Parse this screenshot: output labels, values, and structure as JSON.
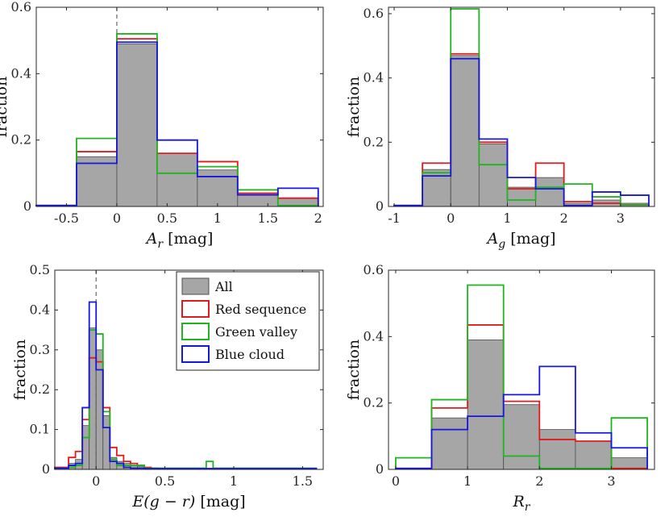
{
  "figure": {
    "layout": "2x2 grid of histograms"
  },
  "colors": {
    "all_fill": "#a6a6a6",
    "all_edge": "#4d4d4d",
    "red": "#e31a1c",
    "green": "#1fb51f",
    "blue": "#1616e0",
    "zero_line": "#666666"
  },
  "legend": {
    "entries": [
      {
        "key": "all",
        "label": "All",
        "style": "filled"
      },
      {
        "key": "red",
        "label": "Red sequence",
        "style": "outline"
      },
      {
        "key": "green",
        "label": "Green valley",
        "style": "outline"
      },
      {
        "key": "blue",
        "label": "Blue cloud",
        "style": "outline"
      }
    ]
  },
  "chart_data": [
    {
      "type": "histogram",
      "panel": "top-left",
      "xlabel": {
        "main": "A",
        "sub": "r",
        "unit": " [mag]"
      },
      "ylabel": "fraction",
      "xlim": [
        -0.8,
        2.05
      ],
      "ylim": [
        0,
        0.6
      ],
      "xticks": [
        -0.5,
        0,
        0.5,
        1,
        1.5,
        2
      ],
      "xticklabels": [
        "-0.5",
        "0",
        "0.5",
        "1",
        "1.5",
        "2"
      ],
      "yticks": [
        0,
        0.2,
        0.4,
        0.6
      ],
      "yticklabels": [
        "0",
        "0.2",
        "0.4",
        "0.6"
      ],
      "zero_line_x": 0,
      "bin_edges": [
        -0.8,
        -0.4,
        0,
        0.4,
        0.8,
        1.2,
        1.6,
        2.0
      ],
      "series": [
        {
          "name": "All",
          "key": "all",
          "values": [
            0.003,
            0.15,
            0.49,
            0.16,
            0.11,
            0.04,
            0.025
          ]
        },
        {
          "name": "Red sequence",
          "key": "red",
          "values": [
            0.003,
            0.165,
            0.505,
            0.16,
            0.135,
            0.04,
            0.025
          ]
        },
        {
          "name": "Green valley",
          "key": "green",
          "values": [
            0.003,
            0.205,
            0.52,
            0.1,
            0.12,
            0.05,
            0.003
          ]
        },
        {
          "name": "Blue cloud",
          "key": "blue",
          "values": [
            0.003,
            0.13,
            0.495,
            0.2,
            0.09,
            0.035,
            0.055
          ]
        }
      ]
    },
    {
      "type": "histogram",
      "panel": "top-right",
      "xlabel": {
        "main": "A",
        "sub": "g",
        "unit": " [mag]"
      },
      "ylabel": "fraction",
      "xlim": [
        -1.1,
        3.6
      ],
      "ylim": [
        0,
        0.62
      ],
      "xticks": [
        -1,
        0,
        1,
        2,
        3
      ],
      "xticklabels": [
        "-1",
        "0",
        "1",
        "2",
        "3"
      ],
      "yticks": [
        0,
        0.2,
        0.4,
        0.6
      ],
      "yticklabels": [
        "0",
        "0.2",
        "0.4",
        "0.6"
      ],
      "zero_line_x": 0,
      "bin_edges": [
        -1.0,
        -0.5,
        0,
        0.5,
        1.0,
        1.5,
        2.0,
        2.5,
        3.0,
        3.5
      ],
      "series": [
        {
          "name": "All",
          "key": "all",
          "values": [
            0.003,
            0.115,
            0.47,
            0.195,
            0.06,
            0.09,
            0.01,
            0.02,
            0.01
          ]
        },
        {
          "name": "Red sequence",
          "key": "red",
          "values": [
            0.003,
            0.135,
            0.475,
            0.2,
            0.055,
            0.135,
            0.015,
            0.01,
            0.005
          ]
        },
        {
          "name": "Green valley",
          "key": "green",
          "values": [
            0.003,
            0.105,
            0.615,
            0.13,
            0.02,
            0.06,
            0.07,
            0.03,
            0.005
          ]
        },
        {
          "name": "Blue cloud",
          "key": "blue",
          "values": [
            0.003,
            0.095,
            0.46,
            0.21,
            0.09,
            0.055,
            0.003,
            0.045,
            0.035
          ]
        }
      ]
    },
    {
      "type": "histogram",
      "panel": "bottom-left",
      "xlabel": {
        "main": "E(g − r)",
        "sub": "",
        "unit": " [mag]"
      },
      "ylabel": "fraction",
      "xlim": [
        -0.3,
        1.65
      ],
      "ylim": [
        0,
        0.5
      ],
      "xticks": [
        0,
        0.5,
        1,
        1.5
      ],
      "xticklabels": [
        "0",
        "0.5",
        "1",
        "1.5"
      ],
      "yticks": [
        0,
        0.1,
        0.2,
        0.3,
        0.4,
        0.5
      ],
      "yticklabels": [
        "0",
        "0.1",
        "0.2",
        "0.3",
        "0.4",
        "0.5"
      ],
      "zero_line_x": 0,
      "bin_edges": [
        -0.3,
        -0.2,
        -0.1,
        0,
        0.1,
        0.2,
        0.3,
        0.4,
        0.5,
        0.6,
        0.7,
        0.8,
        0.9,
        1.0,
        1.1,
        1.2,
        1.3,
        1.4,
        1.5,
        1.6
      ],
      "bin_width": 0.05,
      "bins_left": [
        -0.3,
        -0.25,
        -0.2,
        -0.15,
        -0.1,
        -0.05,
        0,
        0.05,
        0.1,
        0.15,
        0.2,
        0.25,
        0.3,
        0.35,
        0.4,
        0.45,
        0.5,
        0.55,
        0.6,
        0.65,
        0.7,
        0.75,
        0.8,
        0.85,
        0.9,
        0.95,
        1.0,
        1.05,
        1.1,
        1.15,
        1.2,
        1.25,
        1.3,
        1.35,
        1.4,
        1.45,
        1.5,
        1.55
      ],
      "series": [
        {
          "name": "All",
          "key": "all",
          "values": [
            0.003,
            0.003,
            0.015,
            0.025,
            0.11,
            0.355,
            0.3,
            0.135,
            0.03,
            0.02,
            0.015,
            0.01,
            0.008,
            0.005,
            0.003,
            0.003,
            0.002,
            0.002,
            0.002,
            0.001,
            0.001,
            0.001,
            0.001,
            0.001,
            0.001,
            0.001,
            0.001,
            0.001,
            0.001,
            0.001,
            0.001,
            0.001,
            0.001,
            0.001,
            0.001,
            0.001,
            0.001,
            0.001
          ]
        },
        {
          "name": "Red sequence",
          "key": "red",
          "values": [
            0.005,
            0.005,
            0.03,
            0.045,
            0.125,
            0.28,
            0.27,
            0.155,
            0.055,
            0.035,
            0.02,
            0.015,
            0.01,
            0.005,
            0.003,
            0.002,
            0.002,
            0.002,
            0.002,
            0.002,
            0.002,
            0.002,
            0.002,
            0.002,
            0.002,
            0.002,
            0.002,
            0.002,
            0.002,
            0.002,
            0.002,
            0.002,
            0.002,
            0.002,
            0.002,
            0.002,
            0.002,
            0.002
          ]
        },
        {
          "name": "Green valley",
          "key": "green",
          "values": [
            0.003,
            0.003,
            0.005,
            0.01,
            0.08,
            0.35,
            0.34,
            0.145,
            0.025,
            0.01,
            0.01,
            0.01,
            0.01,
            0.003,
            0.003,
            0.003,
            0.003,
            0.003,
            0.003,
            0.003,
            0.003,
            0.003,
            0.02,
            0.003,
            0.003,
            0.003,
            0.003,
            0.003,
            0.003,
            0.003,
            0.003,
            0.003,
            0.003,
            0.003,
            0.003,
            0.003,
            0.003,
            0.003
          ]
        },
        {
          "name": "Blue cloud",
          "key": "blue",
          "values": [
            0.003,
            0.003,
            0.01,
            0.015,
            0.155,
            0.42,
            0.25,
            0.105,
            0.02,
            0.015,
            0.005,
            0.003,
            0.003,
            0.002,
            0.002,
            0.002,
            0.002,
            0.002,
            0.002,
            0.002,
            0.002,
            0.002,
            0.002,
            0.002,
            0.002,
            0.002,
            0.002,
            0.002,
            0.002,
            0.002,
            0.002,
            0.002,
            0.002,
            0.002,
            0.002,
            0.002,
            0.002,
            0.002
          ]
        }
      ]
    },
    {
      "type": "histogram",
      "panel": "bottom-right",
      "xlabel": {
        "main": "R",
        "sub": "r",
        "unit": ""
      },
      "ylabel": "fraction",
      "xlim": [
        -0.1,
        3.6
      ],
      "ylim": [
        0,
        0.6
      ],
      "xticks": [
        0,
        1,
        2,
        3
      ],
      "xticklabels": [
        "0",
        "1",
        "2",
        "3"
      ],
      "yticks": [
        0,
        0.2,
        0.4,
        0.6
      ],
      "yticklabels": [
        "0",
        "0.2",
        "0.4",
        "0.6"
      ],
      "zero_line_x": null,
      "bin_edges": [
        0,
        0.5,
        1.0,
        1.5,
        2.0,
        2.5,
        3.0,
        3.5
      ],
      "series": [
        {
          "name": "All",
          "key": "all",
          "values": [
            0.003,
            0.155,
            0.39,
            0.195,
            0.12,
            0.085,
            0.035
          ]
        },
        {
          "name": "Red sequence",
          "key": "red",
          "values": [
            0.003,
            0.185,
            0.435,
            0.205,
            0.09,
            0.085,
            0.003
          ]
        },
        {
          "name": "Green valley",
          "key": "green",
          "values": [
            0.035,
            0.21,
            0.555,
            0.04,
            0.003,
            0.003,
            0.155
          ]
        },
        {
          "name": "Blue cloud",
          "key": "blue",
          "values": [
            0.003,
            0.12,
            0.16,
            0.225,
            0.31,
            0.11,
            0.065
          ]
        }
      ]
    }
  ]
}
